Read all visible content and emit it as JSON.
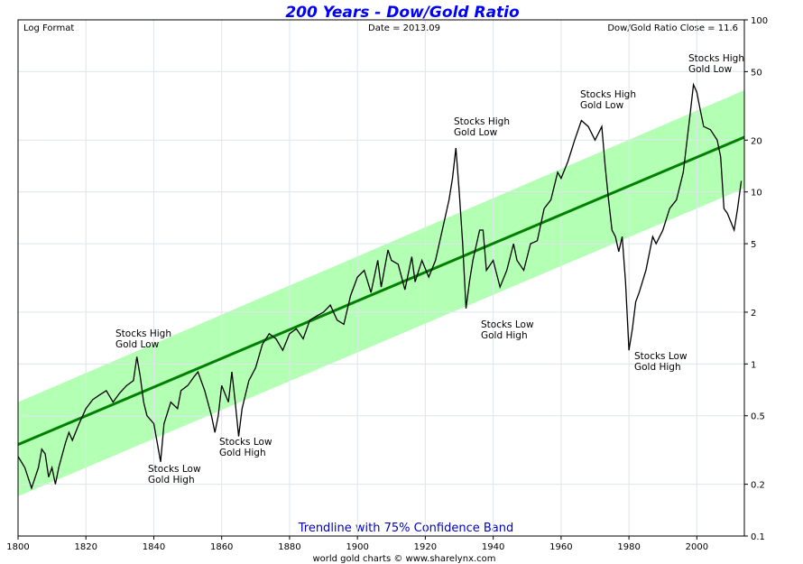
{
  "chart_data": {
    "type": "line",
    "title": "200 Years - Dow/Gold Ratio",
    "header_left": "Log Format",
    "header_center": "Date = 2013.09",
    "header_right": "Dow/Gold Ratio Close = 11.6",
    "note": "Trendline with 75% Confidence Band",
    "footer": "world gold charts © www.sharelynx.com",
    "annotations": [
      [
        "Stocks High",
        "Gold Low"
      ],
      [
        "Stocks Low",
        "Gold High"
      ],
      [
        "Stocks Low",
        "Gold High"
      ],
      [
        "Stocks High",
        "Gold Low"
      ],
      [
        "Stocks Low",
        "Gold High"
      ],
      [
        "Stocks High",
        "Gold Low"
      ],
      [
        "Stocks Low",
        "Gold High"
      ],
      [
        "Stocks High",
        "Gold Low"
      ]
    ],
    "log_scale": true,
    "grid": true,
    "xlim": [
      1800,
      2014
    ],
    "xticks": [
      1800,
      1820,
      1840,
      1860,
      1880,
      1900,
      1920,
      1940,
      1960,
      1980,
      2000
    ],
    "ylim": [
      0.1,
      100
    ],
    "yticks": [
      0.1,
      0.2,
      0.5,
      1,
      2,
      5,
      10,
      20,
      50,
      100
    ],
    "band": {
      "color": "#b3ffb3",
      "x": [
        1800,
        2014
      ],
      "upper": [
        0.6,
        39
      ],
      "lower": [
        0.17,
        10.5
      ]
    },
    "trend": {
      "color": "#008000",
      "x": [
        1800,
        2014
      ],
      "values": [
        0.34,
        20.8
      ]
    },
    "series": [
      {
        "color": "#000000",
        "x": [
          1800,
          1802,
          1804,
          1806,
          1807,
          1808,
          1809,
          1810,
          1811,
          1812,
          1814,
          1815,
          1816,
          1818,
          1820,
          1822,
          1824,
          1826,
          1828,
          1830,
          1832,
          1834,
          1835,
          1836,
          1837,
          1838,
          1840,
          1841,
          1842,
          1843,
          1845,
          1847,
          1848,
          1850,
          1852,
          1853,
          1855,
          1857,
          1858,
          1859,
          1860,
          1862,
          1863,
          1864,
          1865,
          1866,
          1868,
          1870,
          1872,
          1874,
          1876,
          1878,
          1880,
          1882,
          1884,
          1886,
          1888,
          1890,
          1892,
          1894,
          1896,
          1898,
          1900,
          1902,
          1904,
          1906,
          1907,
          1909,
          1910,
          1912,
          1914,
          1916,
          1917,
          1919,
          1921,
          1923,
          1925,
          1927,
          1928,
          1929,
          1930,
          1931,
          1932,
          1933,
          1934,
          1936,
          1937,
          1938,
          1940,
          1942,
          1944,
          1946,
          1947,
          1949,
          1951,
          1953,
          1955,
          1957,
          1959,
          1960,
          1962,
          1964,
          1966,
          1968,
          1970,
          1972,
          1973,
          1974,
          1975,
          1976,
          1977,
          1978,
          1979,
          1980,
          1981,
          1982,
          1983,
          1985,
          1987,
          1988,
          1990,
          1992,
          1994,
          1996,
          1998,
          1999,
          2000,
          2001,
          2002,
          2004,
          2006,
          2007,
          2008,
          2009,
          2011,
          2012,
          2013.09
        ],
        "values": [
          0.29,
          0.25,
          0.19,
          0.25,
          0.32,
          0.3,
          0.22,
          0.25,
          0.2,
          0.25,
          0.35,
          0.4,
          0.36,
          0.45,
          0.55,
          0.62,
          0.66,
          0.7,
          0.6,
          0.68,
          0.75,
          0.8,
          1.1,
          0.85,
          0.6,
          0.5,
          0.45,
          0.35,
          0.27,
          0.45,
          0.6,
          0.55,
          0.7,
          0.75,
          0.85,
          0.9,
          0.7,
          0.5,
          0.4,
          0.5,
          0.75,
          0.6,
          0.9,
          0.6,
          0.38,
          0.55,
          0.8,
          0.95,
          1.3,
          1.5,
          1.4,
          1.2,
          1.5,
          1.6,
          1.4,
          1.8,
          1.9,
          2.0,
          2.2,
          1.8,
          1.7,
          2.5,
          3.2,
          3.5,
          2.6,
          4.0,
          2.8,
          4.6,
          4.0,
          3.8,
          2.7,
          4.2,
          3.0,
          4.0,
          3.2,
          4.0,
          6.0,
          9.0,
          12,
          18,
          10,
          5,
          2.1,
          3,
          4,
          6,
          6,
          3.5,
          4,
          2.8,
          3.5,
          5,
          4,
          3.5,
          5,
          5.2,
          8,
          9,
          13,
          12,
          15,
          20,
          26,
          24,
          20,
          24,
          14,
          9,
          6,
          5.5,
          4.5,
          5.5,
          3,
          1.2,
          1.6,
          2.3,
          2.6,
          3.5,
          5.5,
          5,
          6,
          8,
          9,
          13,
          28,
          42,
          38,
          30,
          24,
          23,
          20,
          16,
          8,
          7.5,
          6,
          8,
          11.6
        ]
      }
    ]
  }
}
